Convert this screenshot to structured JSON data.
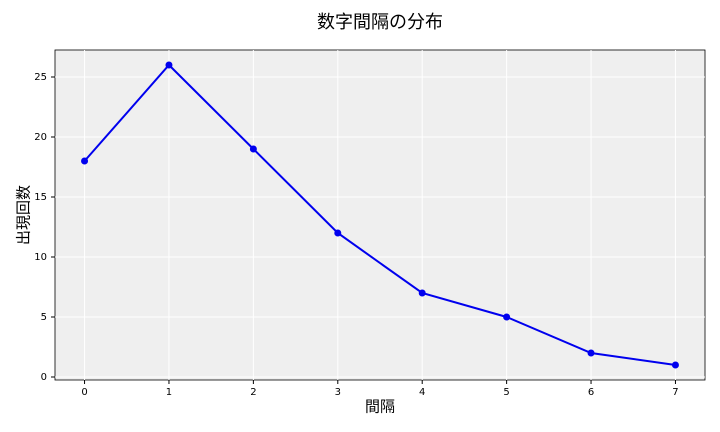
{
  "chart_data": {
    "type": "line",
    "title": "数字間隔の分布",
    "x_label": "間隔",
    "y_label": "出現回数",
    "x": [
      0,
      1,
      2,
      3,
      4,
      5,
      6,
      7
    ],
    "values": [
      18,
      26,
      19,
      12,
      7,
      5,
      2,
      1
    ],
    "color": "#0000ee",
    "xlim": [
      -0.35,
      7.35
    ],
    "ylim": [
      -0.25,
      27.25
    ],
    "xticks": [
      0,
      1,
      2,
      3,
      4,
      5,
      6,
      7
    ],
    "yticks": [
      0,
      5,
      10,
      15,
      20,
      25
    ],
    "grid": true
  }
}
